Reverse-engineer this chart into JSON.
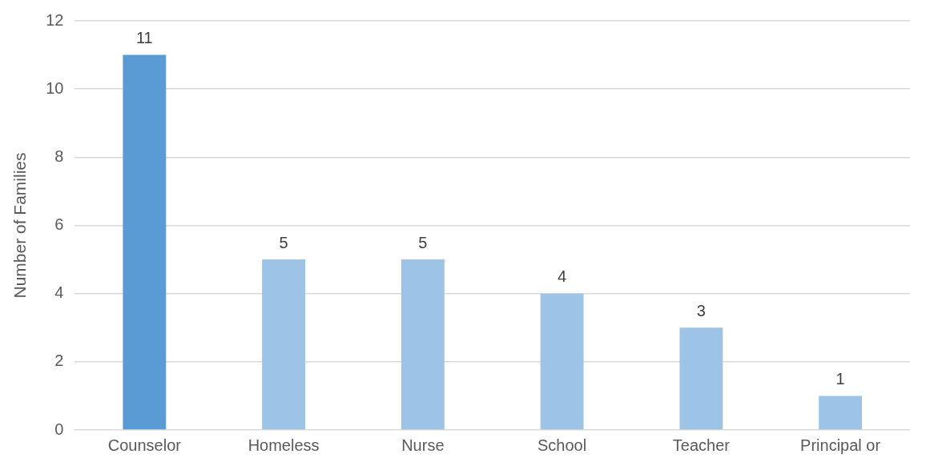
{
  "chart_data": {
    "type": "bar",
    "ylabel": "Number of Families",
    "categories": [
      "Counselor",
      "Homeless",
      "Nurse",
      "School",
      "Teacher",
      "Principal or"
    ],
    "values": [
      11,
      5,
      5,
      4,
      3,
      1
    ],
    "colors": [
      "#5b9bd5",
      "#9dc3e6",
      "#9dc3e6",
      "#9dc3e6",
      "#9dc3e6",
      "#9dc3e6"
    ],
    "ylim": [
      0,
      12
    ],
    "yticks": [
      0,
      2,
      4,
      6,
      8,
      10,
      12
    ],
    "grid": "y",
    "legend": false,
    "data_labels": true
  }
}
